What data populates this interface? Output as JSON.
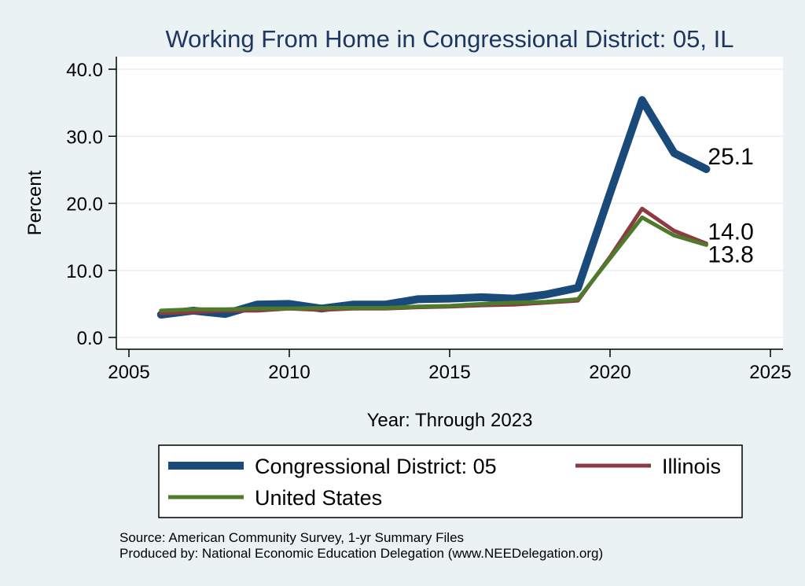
{
  "chart_data": {
    "type": "line",
    "title": "Working From Home in Congressional District: 05, IL",
    "xlabel": "Year: Through 2023",
    "ylabel": "Percent",
    "xlim": [
      2005,
      2025
    ],
    "ylim": [
      0,
      40
    ],
    "xticks": [
      2005,
      2010,
      2015,
      2020,
      2025
    ],
    "yticks": [
      0,
      10,
      20,
      30,
      40
    ],
    "ytick_labels": [
      "0.0",
      "10.0",
      "20.0",
      "30.0",
      "40.0"
    ],
    "grid": "horizontal",
    "x": [
      2006,
      2007,
      2008,
      2009,
      2010,
      2011,
      2012,
      2013,
      2014,
      2015,
      2016,
      2017,
      2018,
      2019,
      2020,
      2021,
      2022,
      2023
    ],
    "series": [
      {
        "name": "Congressional District: 05",
        "color": "#1a4a7a",
        "width": 10,
        "values": [
          3.4,
          4.0,
          3.5,
          4.9,
          5.0,
          4.3,
          4.9,
          4.9,
          5.7,
          5.8,
          6.0,
          5.8,
          6.4,
          7.4,
          21.5,
          35.4,
          27.5,
          25.1
        ],
        "end_label": "25.1"
      },
      {
        "name": "Illinois",
        "color": "#8c3b43",
        "width": 5,
        "values": [
          3.6,
          3.8,
          4.0,
          4.0,
          4.3,
          4.1,
          4.3,
          4.3,
          4.5,
          4.6,
          4.8,
          4.9,
          5.2,
          5.5,
          12.0,
          19.2,
          15.9,
          14.0
        ],
        "end_label": "14.0"
      },
      {
        "name": "United States",
        "color": "#4f7a2b",
        "width": 5,
        "values": [
          4.0,
          4.2,
          4.2,
          4.3,
          4.3,
          4.4,
          4.4,
          4.4,
          4.6,
          4.7,
          5.0,
          5.2,
          5.3,
          5.7,
          11.8,
          17.9,
          15.2,
          13.8
        ],
        "end_label": "13.8"
      }
    ],
    "legend": {
      "placement": "bottom",
      "order": [
        "Congressional District: 05",
        "Illinois",
        "United States"
      ]
    }
  },
  "source_lines": [
    "Source: American Community Survey, 1-yr Summary Files",
    "Produced by: National Economic Education Delegation (www.NEEDelegation.org)"
  ]
}
